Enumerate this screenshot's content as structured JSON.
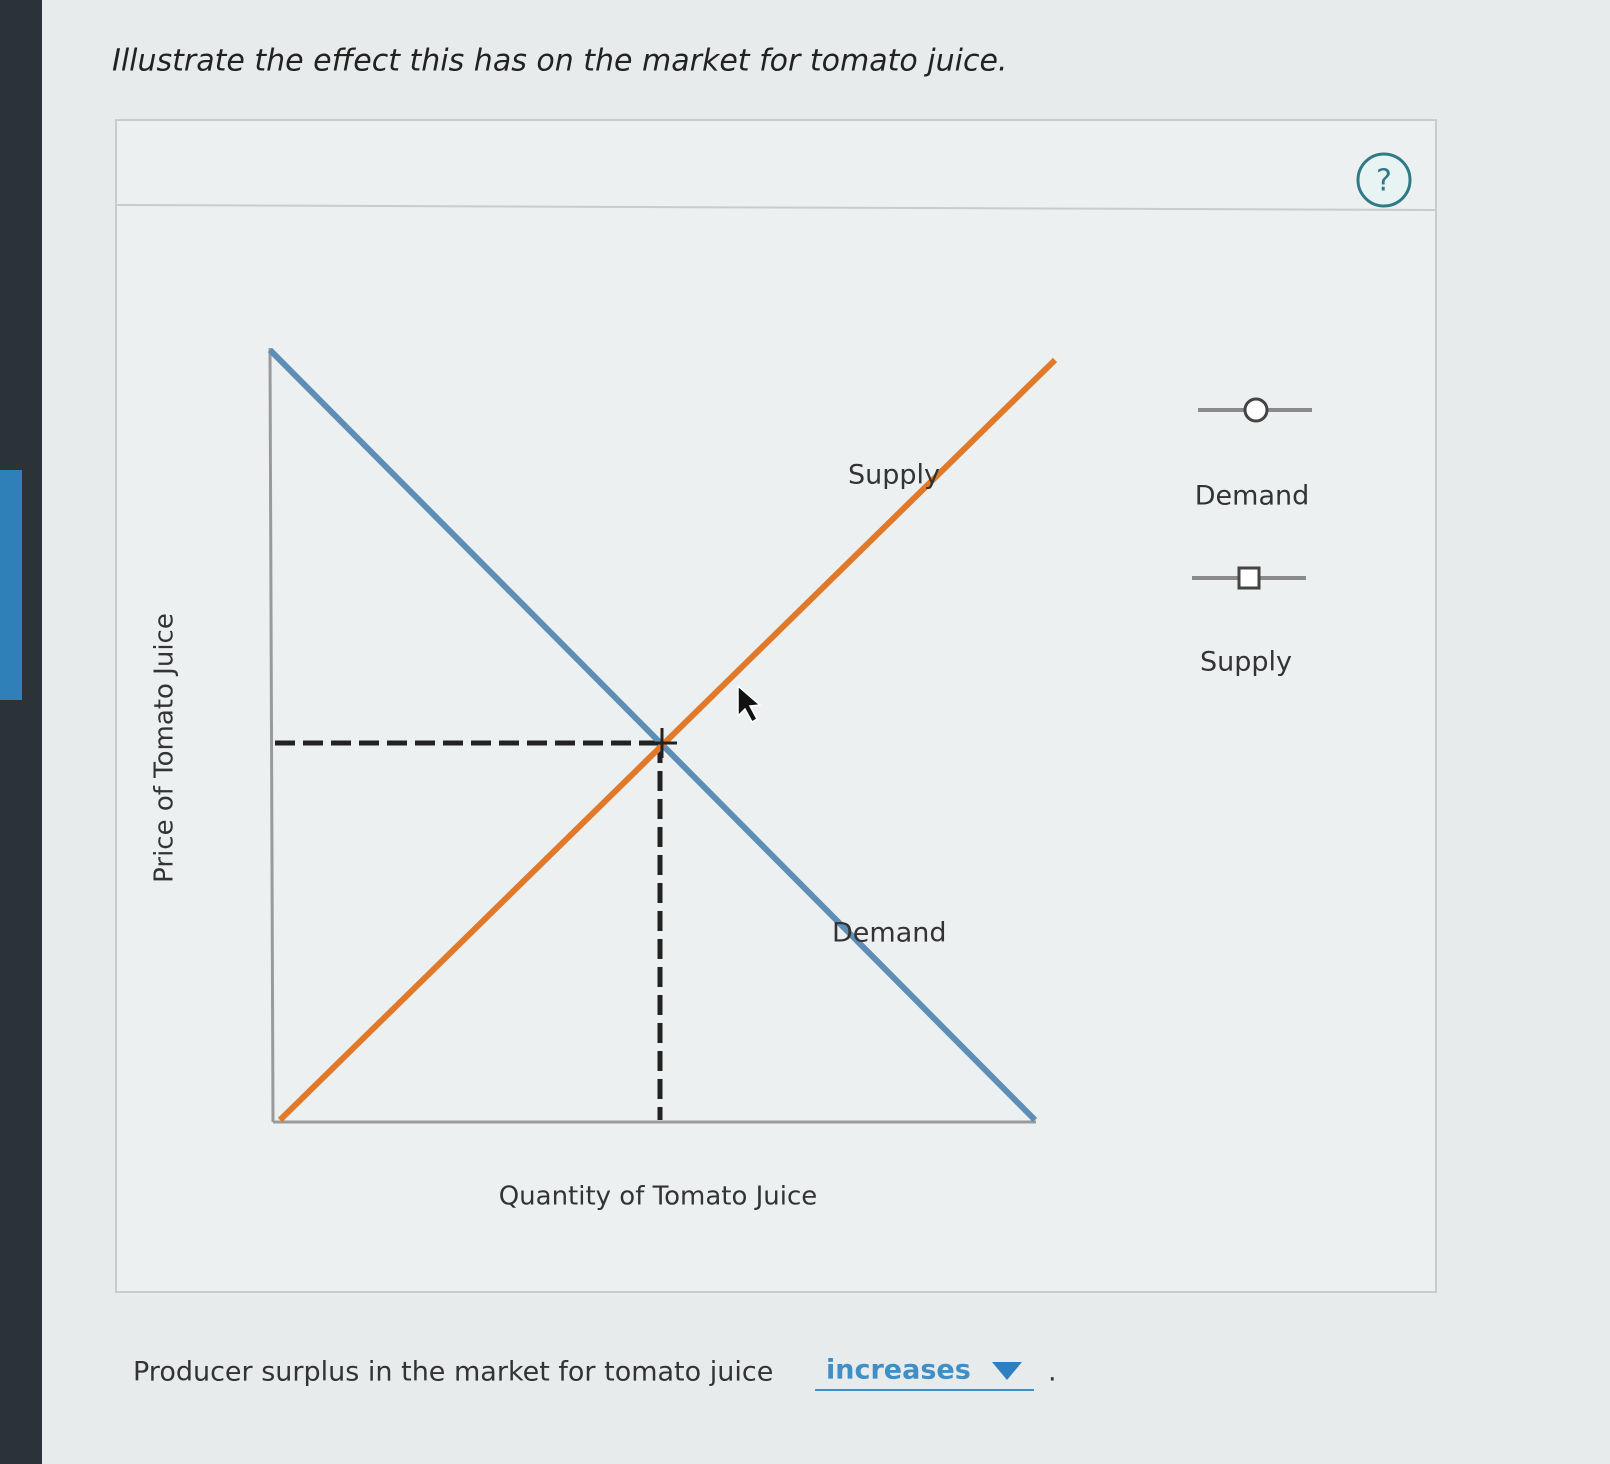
{
  "question": "Illustrate the effect this has on the market for tomato juice.",
  "help": "?",
  "graph": {
    "y_axis_label": "Price of Tomato Juice",
    "x_axis_label": "Quantity of Tomato Juice",
    "curve_labels": {
      "supply": "Supply",
      "demand": "Demand"
    }
  },
  "legend": {
    "demand": "Demand",
    "supply": "Supply"
  },
  "answer": {
    "prompt": "Producer surplus in the market for tomato juice",
    "selected": "increases",
    "end": "."
  }
}
